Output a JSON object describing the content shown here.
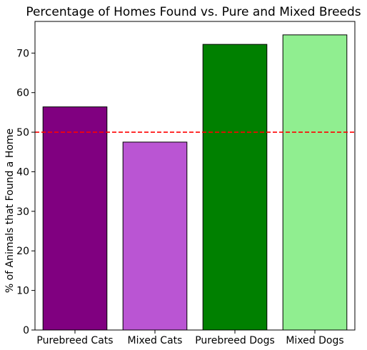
{
  "chart_data": {
    "type": "bar",
    "title": "Percentage of Homes Found vs. Pure and Mixed Breeds",
    "xlabel": "",
    "ylabel": "% of Animals that Found a Home",
    "categories": [
      "Purebreed Cats",
      "Mixed Cats",
      "Purebreed Dogs",
      "Mixed Dogs"
    ],
    "values": [
      56.4,
      47.5,
      72.2,
      74.6
    ],
    "colors": [
      "#800080",
      "#ba55d3",
      "#008000",
      "#90ee90"
    ],
    "bar_edge_color": "#000000",
    "ylim": [
      0,
      78
    ],
    "yticks": [
      0,
      10,
      20,
      30,
      40,
      50,
      60,
      70
    ],
    "reference_line": {
      "y": 50,
      "color": "#ff0000",
      "style": "dashed"
    },
    "grid": false,
    "legend": "none"
  }
}
